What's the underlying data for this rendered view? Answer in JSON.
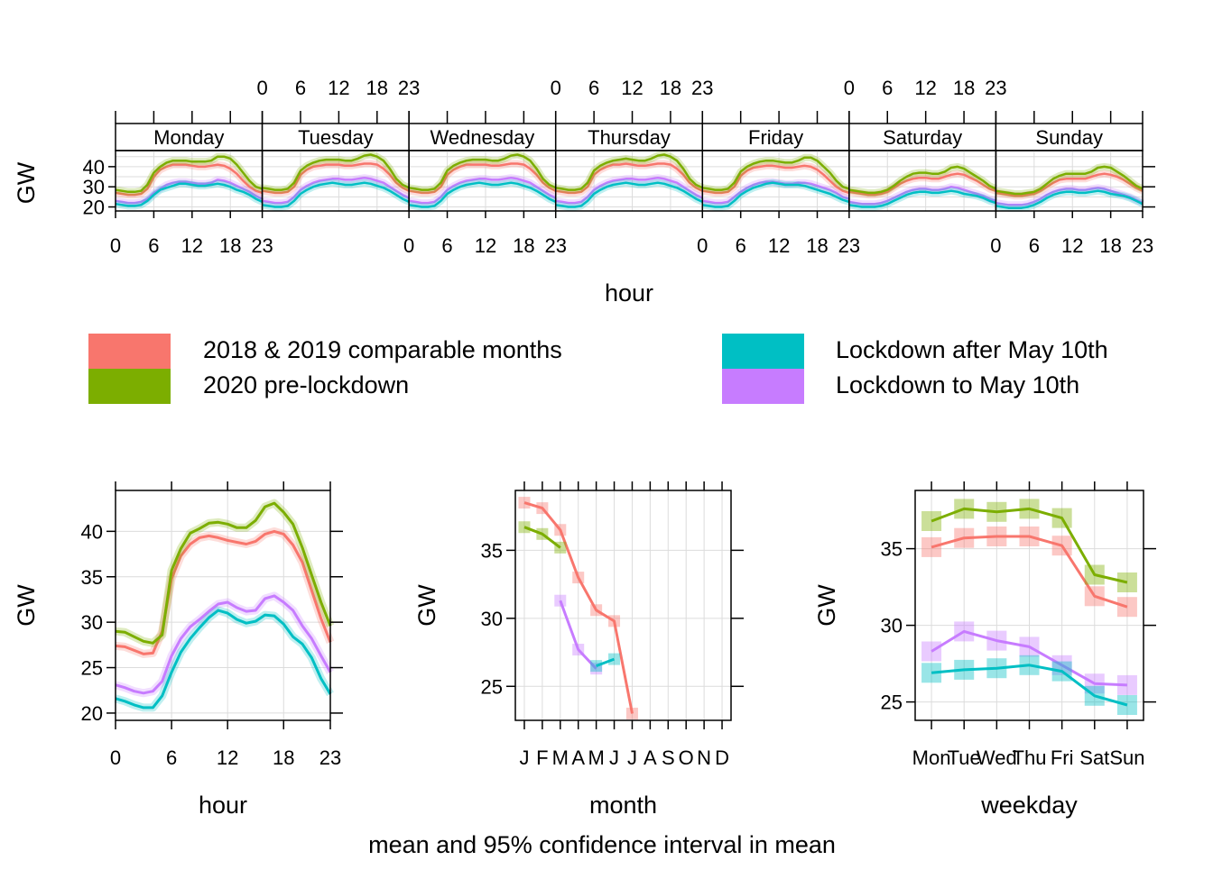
{
  "caption": "mean and 95% confidence interval in mean",
  "colors": {
    "comparable": "#F8766D",
    "prelock": "#7CAE00",
    "lockafter": "#00BFC4",
    "lockto": "#C77CFF"
  },
  "legend": [
    {
      "key": "comparable",
      "label": "2018 & 2019 comparable months"
    },
    {
      "key": "prelock",
      "label": "2020 pre-lockdown"
    },
    {
      "key": "lockafter",
      "label": "Lockdown after May 10th"
    },
    {
      "key": "lockto",
      "label": "Lockdown to May 10th"
    }
  ],
  "chart_data": [
    {
      "type": "line",
      "id": "weekly",
      "title": "",
      "xlabel": "hour",
      "ylabel": "GW",
      "panels": [
        "Monday",
        "Tuesday",
        "Wednesday",
        "Thursday",
        "Friday",
        "Saturday",
        "Sunday"
      ],
      "xticks": [
        "0",
        "6",
        "12",
        "18",
        "23"
      ],
      "yticks": [
        "20",
        "30",
        "40"
      ],
      "ylim": [
        18,
        48
      ],
      "xlim": [
        0,
        23
      ],
      "grid": true,
      "series_by_day": {
        "Monday": {
          "comparable": [
            27,
            26.5,
            26,
            26,
            26.5,
            29,
            35,
            38.5,
            40,
            41,
            41,
            41,
            40.5,
            40,
            40,
            40.5,
            41,
            40.5,
            39,
            36.5,
            33,
            30,
            28,
            27
          ],
          "prelock": [
            28.5,
            28,
            27.5,
            27.5,
            28,
            31,
            37,
            40,
            42,
            43,
            43,
            43,
            42.5,
            42.5,
            42.5,
            43,
            45,
            45,
            44,
            41,
            37,
            33,
            30,
            29
          ],
          "lockafter": [
            21.5,
            21,
            20.5,
            20.5,
            21,
            23,
            26,
            28.5,
            29.5,
            30.5,
            31.5,
            31.5,
            31,
            30.5,
            30.5,
            31,
            31.5,
            31,
            30,
            28.5,
            27.5,
            26,
            24,
            22.5
          ],
          "lockto": [
            23,
            22.5,
            22,
            22,
            22.5,
            24,
            27,
            29,
            31,
            32,
            32.5,
            32.5,
            32,
            31.5,
            31.5,
            32,
            33.5,
            33,
            32,
            30.5,
            29,
            27.5,
            25.5,
            24
          ]
        },
        "Tuesday": {
          "comparable": [
            28,
            27.5,
            27,
            27,
            27.5,
            30,
            36,
            38.5,
            40,
            40.5,
            41,
            41,
            41,
            40.5,
            40.5,
            41,
            41.5,
            41.5,
            41,
            39,
            36,
            32,
            29.5,
            28
          ],
          "prelock": [
            29.5,
            29,
            28.5,
            28.5,
            29,
            32,
            38,
            40.5,
            42,
            43,
            43.5,
            43.5,
            43.5,
            43,
            43,
            44,
            45.5,
            46,
            45,
            43,
            39,
            34,
            31,
            29.5
          ],
          "lockafter": [
            21,
            20.5,
            20,
            20,
            20.5,
            23,
            26.5,
            28.5,
            30,
            31,
            31.5,
            32,
            31.5,
            31,
            31,
            31.5,
            32,
            31.5,
            30.5,
            29.5,
            28,
            26,
            24,
            22.5
          ],
          "lockto": [
            23,
            22.5,
            22,
            22,
            22.5,
            25,
            28.5,
            30.5,
            32,
            33,
            33.5,
            34,
            34,
            33.5,
            33.5,
            34,
            34.5,
            34,
            33,
            32,
            30,
            28,
            26,
            24.5
          ]
        },
        "Wednesday": {
          "comparable": [
            28,
            27.5,
            27,
            27,
            27.5,
            30,
            36,
            38.5,
            40,
            41,
            41,
            41,
            41,
            40.5,
            40.5,
            41,
            41.5,
            41.5,
            41,
            39,
            36,
            32,
            29.5,
            28
          ],
          "prelock": [
            29.5,
            29,
            28.5,
            28.5,
            29,
            32,
            38,
            40.5,
            42,
            43,
            43.5,
            43.5,
            43.5,
            43,
            43,
            44,
            45.5,
            46,
            45,
            43,
            39,
            34,
            31,
            29.5
          ],
          "lockafter": [
            21,
            20.5,
            20,
            20,
            20.5,
            23,
            26.5,
            28.5,
            30,
            31,
            31.5,
            32,
            31.5,
            31,
            31,
            31.5,
            32,
            31.5,
            30.5,
            29.5,
            28,
            26,
            24,
            22.5
          ],
          "lockto": [
            23,
            22.5,
            22,
            22,
            22.5,
            25,
            28.5,
            30.5,
            32,
            33,
            33.5,
            34,
            34,
            33.5,
            33.5,
            34,
            34.5,
            34,
            33,
            32,
            30,
            28,
            26,
            24.5
          ]
        },
        "Thursday": {
          "comparable": [
            28,
            27.5,
            27,
            27,
            27.5,
            30,
            36,
            38.5,
            40,
            41,
            41,
            41.5,
            41,
            40.5,
            40.5,
            41,
            41.5,
            41.5,
            41,
            39,
            36,
            32,
            29.5,
            28
          ],
          "prelock": [
            29.5,
            29,
            28.5,
            28.5,
            29,
            32,
            38,
            40.5,
            42,
            43,
            43.5,
            44,
            43.5,
            43,
            43,
            44,
            45.5,
            46,
            45,
            43,
            39,
            34,
            31,
            29.5
          ],
          "lockafter": [
            21,
            20.5,
            20,
            20,
            20.5,
            23,
            26.5,
            28.5,
            30,
            31,
            31.5,
            32,
            31.5,
            31,
            31,
            31.5,
            32,
            31.5,
            30.5,
            29.5,
            28,
            26,
            24,
            22.5
          ],
          "lockto": [
            23,
            22.5,
            22,
            22,
            22.5,
            25,
            28.5,
            30.5,
            32,
            33,
            33.5,
            34,
            34,
            33.5,
            33.5,
            34,
            34.5,
            34,
            33,
            32,
            30,
            28,
            26,
            24.5
          ]
        },
        "Friday": {
          "comparable": [
            28,
            27.5,
            27,
            27,
            27.5,
            30,
            35.5,
            38,
            39.5,
            40,
            40.5,
            40.5,
            40,
            39.5,
            39.5,
            40,
            40.5,
            40,
            38.5,
            36,
            33,
            30,
            28,
            27
          ],
          "prelock": [
            29.5,
            29,
            28.5,
            28.5,
            29,
            32,
            37.5,
            40,
            41.5,
            42.5,
            43,
            43,
            42.5,
            42,
            42,
            43,
            44.5,
            44.5,
            43,
            40,
            37,
            33,
            30,
            29
          ],
          "lockafter": [
            21,
            20.5,
            20,
            20,
            20.5,
            23,
            26,
            28,
            29.5,
            30.5,
            31.5,
            32,
            31.5,
            31,
            31,
            31,
            30.5,
            29.5,
            28.5,
            27.5,
            26.5,
            25,
            23.5,
            22.5
          ],
          "lockto": [
            23,
            22.5,
            22,
            22,
            22.5,
            25,
            27.5,
            29.5,
            31,
            32,
            32.5,
            32.5,
            32,
            31.5,
            31.5,
            32,
            32,
            31.5,
            30.5,
            29.5,
            28.5,
            27,
            25,
            24
          ]
        },
        "Saturday": {
          "comparable": [
            27.5,
            27,
            26.5,
            26,
            26,
            26.5,
            27.5,
            29.5,
            31.5,
            33,
            34,
            34.5,
            34.5,
            34,
            34,
            35,
            36,
            36.5,
            36,
            34.5,
            33,
            31,
            29,
            28
          ],
          "prelock": [
            28.5,
            28,
            27.5,
            27,
            27,
            27.5,
            28.5,
            30.5,
            33,
            35,
            36.5,
            37,
            37,
            36.5,
            36.5,
            37.5,
            39.5,
            40,
            39,
            37,
            35,
            33,
            30.5,
            29
          ],
          "lockafter": [
            21,
            20.5,
            20,
            20,
            20,
            20.5,
            21.5,
            23,
            24.5,
            26,
            27,
            27.5,
            27.5,
            27,
            27,
            27.5,
            28,
            27.5,
            26.5,
            26,
            25.5,
            24.5,
            23,
            22
          ],
          "lockto": [
            22.5,
            22,
            21.5,
            21.5,
            21.5,
            22,
            23,
            24.5,
            26,
            27.5,
            28.5,
            29,
            29,
            28.5,
            28.5,
            29,
            30,
            29.5,
            28.5,
            27.5,
            26.5,
            25.5,
            24,
            23
          ]
        },
        "Sunday": {
          "comparable": [
            27,
            26.5,
            26,
            25.5,
            25.5,
            26,
            26.5,
            28,
            30,
            32,
            33.5,
            34,
            34,
            34,
            34,
            35,
            36,
            36.5,
            36,
            35,
            33.5,
            31.5,
            29.5,
            28
          ],
          "prelock": [
            28,
            27.5,
            27,
            26.5,
            26.5,
            27,
            27.5,
            29,
            31.5,
            34,
            35.5,
            36.5,
            36.5,
            36.5,
            36.5,
            37.5,
            39.5,
            40,
            39.5,
            37.5,
            35.5,
            33,
            30.5,
            29
          ],
          "lockafter": [
            20.5,
            20,
            19.5,
            19.5,
            19.5,
            20,
            21,
            22.5,
            24.5,
            26,
            27,
            27.5,
            27.5,
            27,
            27,
            27.5,
            28,
            27.5,
            26.5,
            26,
            25.5,
            24.5,
            23,
            21.5
          ],
          "lockto": [
            22,
            21.5,
            21,
            21,
            21,
            21.5,
            22.5,
            24,
            26,
            27.5,
            28.5,
            29,
            29,
            28.5,
            28.5,
            29,
            29.5,
            29,
            28,
            27,
            26,
            25,
            23.5,
            22
          ]
        }
      }
    },
    {
      "type": "line",
      "id": "hour",
      "title": "",
      "xlabel": "hour",
      "ylabel": "GW",
      "xlim": [
        0,
        23
      ],
      "ylim": [
        19.2,
        44.5
      ],
      "xticks": [
        0,
        6,
        12,
        18,
        23
      ],
      "yticks": [
        20,
        25,
        30,
        35,
        40
      ],
      "grid": true,
      "x": [
        0,
        1,
        2,
        3,
        4,
        5,
        6,
        7,
        8,
        9,
        10,
        11,
        12,
        13,
        14,
        15,
        16,
        17,
        18,
        19,
        20,
        21,
        22,
        23
      ],
      "series": [
        {
          "key": "comparable",
          "values": [
            27.4,
            27.3,
            26.9,
            26.5,
            26.6,
            29.0,
            34.8,
            37.3,
            38.6,
            39.3,
            39.5,
            39.3,
            39.0,
            38.8,
            38.6,
            38.9,
            39.7,
            40.0,
            39.7,
            38.5,
            36.6,
            33.5,
            30.4,
            27.8
          ]
        },
        {
          "key": "prelock",
          "values": [
            29.0,
            28.9,
            28.4,
            27.9,
            27.7,
            28.6,
            35.7,
            38.1,
            39.8,
            40.3,
            40.9,
            41.0,
            40.8,
            40.4,
            40.4,
            41.2,
            42.7,
            43.1,
            42.1,
            40.8,
            38.2,
            35.2,
            32.2,
            29.6
          ]
        },
        {
          "key": "lockafter",
          "values": [
            21.6,
            21.3,
            20.9,
            20.6,
            20.6,
            21.9,
            24.5,
            26.7,
            28.2,
            29.4,
            30.5,
            31.3,
            31.0,
            30.3,
            29.9,
            30.1,
            30.8,
            30.7,
            29.8,
            28.4,
            27.6,
            26.1,
            23.8,
            22.1
          ]
        },
        {
          "key": "lockto",
          "values": [
            23.1,
            22.8,
            22.4,
            22.2,
            22.4,
            23.5,
            26.3,
            28.2,
            29.5,
            30.3,
            31.2,
            32.0,
            32.2,
            31.6,
            31.2,
            31.3,
            32.6,
            32.9,
            32.2,
            31.3,
            29.6,
            28.2,
            26.3,
            24.5
          ]
        }
      ]
    },
    {
      "type": "line",
      "id": "month",
      "title": "",
      "xlabel": "month",
      "ylabel": "GW",
      "xlim": [
        0.5,
        12.5
      ],
      "ylim": [
        22.5,
        39.4
      ],
      "categories": [
        "J",
        "F",
        "M",
        "A",
        "M",
        "J",
        "J",
        "A",
        "S",
        "O",
        "N",
        "D"
      ],
      "yticks": [
        25,
        30,
        35
      ],
      "grid": true,
      "series": [
        {
          "key": "comparable",
          "values": [
            38.5,
            38.1,
            36.5,
            33.0,
            30.6,
            29.8,
            23.0,
            null,
            null,
            null,
            null,
            null
          ]
        },
        {
          "key": "prelock",
          "values": [
            36.7,
            36.2,
            35.2,
            null,
            null,
            null,
            null,
            null,
            null,
            null,
            null,
            null
          ]
        },
        {
          "key": "lockafter",
          "values": [
            null,
            null,
            null,
            null,
            26.5,
            27.0,
            null,
            null,
            null,
            null,
            null,
            null
          ]
        },
        {
          "key": "lockto",
          "values": [
            null,
            null,
            31.3,
            27.7,
            26.3,
            null,
            null,
            null,
            null,
            null,
            null,
            null
          ]
        }
      ]
    },
    {
      "type": "line",
      "id": "weekday",
      "title": "",
      "xlabel": "weekday",
      "ylabel": "GW",
      "xlim": [
        0.5,
        7.5
      ],
      "ylim": [
        23.8,
        38.8
      ],
      "categories": [
        "Mon",
        "Tue",
        "Wed",
        "Thu",
        "Fri",
        "Sat",
        "Sun"
      ],
      "yticks": [
        25,
        30,
        35
      ],
      "grid": true,
      "series": [
        {
          "key": "comparable",
          "values": [
            35.1,
            35.7,
            35.8,
            35.8,
            35.2,
            31.9,
            31.2
          ]
        },
        {
          "key": "prelock",
          "values": [
            36.8,
            37.6,
            37.4,
            37.6,
            37.0,
            33.3,
            32.8
          ]
        },
        {
          "key": "lockafter",
          "values": [
            26.9,
            27.1,
            27.2,
            27.4,
            27.0,
            25.4,
            24.8
          ]
        },
        {
          "key": "lockto",
          "values": [
            28.3,
            29.6,
            29.0,
            28.6,
            27.4,
            26.2,
            26.1
          ]
        }
      ]
    }
  ]
}
